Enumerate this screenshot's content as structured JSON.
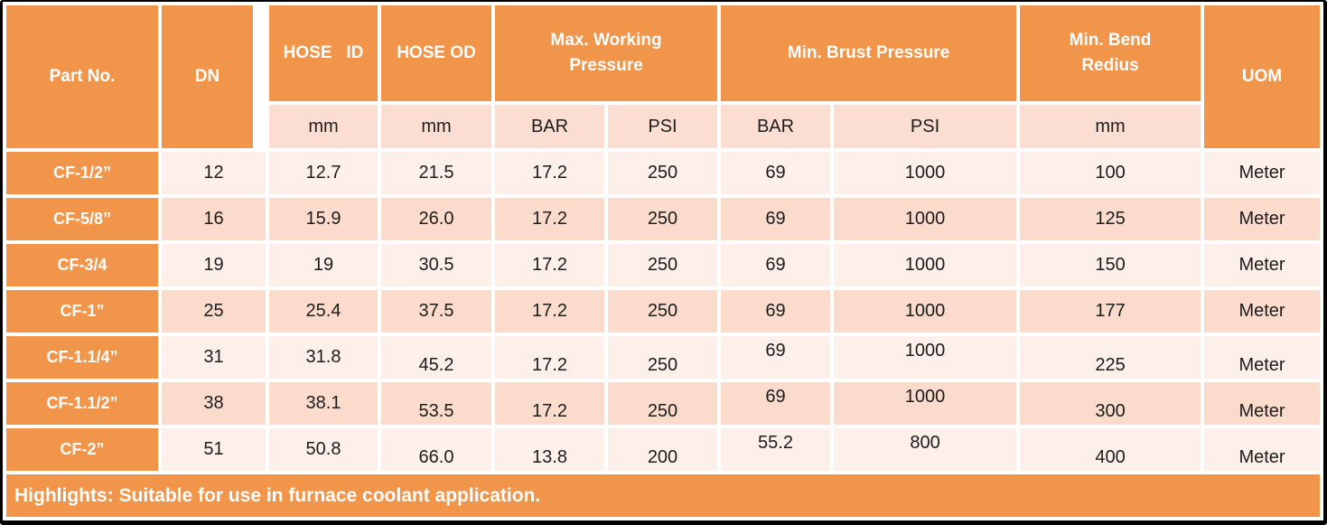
{
  "colors": {
    "orange": "#F0954A",
    "row_light": "#FDEFE9",
    "row_medium": "#FBDCCC",
    "units_bg": "#FBDED1",
    "header_text": "#FFFFFF",
    "body_text": "#1C1C1C",
    "border": "#000000"
  },
  "table": {
    "header": {
      "part_no": "Part No.",
      "dn": "DN",
      "hose_id": "HOSE   ID",
      "hose_od": "HOSE OD",
      "max_working_pressure": "Max. Working\nPressure",
      "min_brust_pressure": "Min. Brust Pressure",
      "min_bend_redius": "Min. Bend\nRedius",
      "uom": "UOM"
    },
    "units_row": {
      "hose_id": "mm",
      "hose_od": "mm",
      "mwp_bar": "BAR",
      "mwp_psi": "PSI",
      "mbp_bar": "BAR",
      "mbp_psi": "PSI",
      "bend_radius": "mm"
    },
    "rows": [
      [
        "CF-1/2”",
        "12",
        "12.7",
        "21.5",
        "17.2",
        "250",
        "69",
        "1000",
        "100",
        "Meter"
      ],
      [
        "CF-5/8”",
        "16",
        "15.9",
        "26.0",
        "17.2",
        "250",
        "69",
        "1000",
        "125",
        "Meter"
      ],
      [
        "CF-3/4",
        "19",
        "19",
        "30.5",
        "17.2",
        "250",
        "69",
        "1000",
        "150",
        "Meter"
      ],
      [
        "CF-1”",
        "25",
        "25.4",
        "37.5",
        "17.2",
        "250",
        "69",
        "1000",
        "177",
        "Meter"
      ],
      [
        "CF-1.1/4”",
        "31",
        "31.8",
        "45.2",
        "17.2",
        "250",
        "69",
        "1000",
        "225",
        "Meter"
      ],
      [
        "CF-1.1/2”",
        "38",
        "38.1",
        "53.5",
        "17.2",
        "250",
        "69",
        "1000",
        "300",
        "Meter"
      ],
      [
        "CF-2”",
        "51",
        "50.8",
        "66.0",
        "13.8",
        "200",
        "55.2",
        "800",
        "400",
        "Meter"
      ]
    ],
    "footer_note": "Highlights: Suitable for use in furnace coolant application."
  }
}
